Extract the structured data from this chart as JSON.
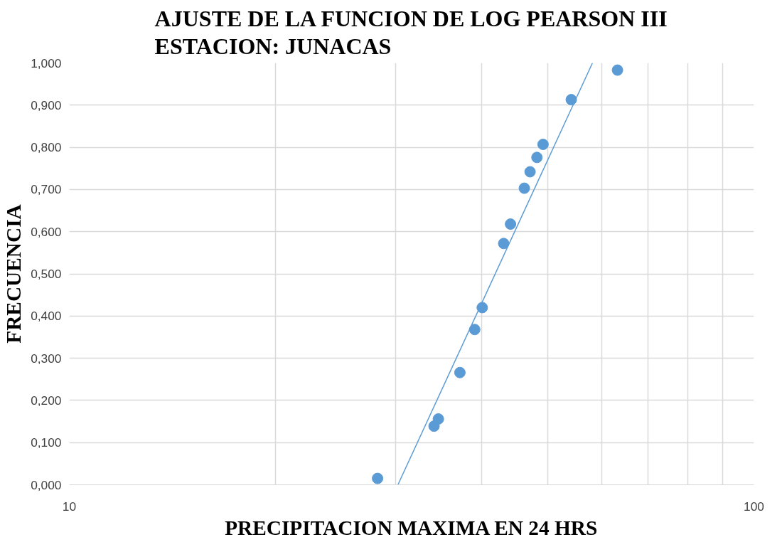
{
  "chart_data": {
    "type": "scatter",
    "title": "AJUSTE DE LA FUNCION DE LOG PEARSON III\nESTACION: JUNACAS",
    "xlabel": "PRECIPITACION MAXIMA EN 24 HRS",
    "ylabel": "FRECUENCIA",
    "log": "x",
    "grid": true,
    "xlim": [
      10,
      100
    ],
    "xticks": [
      10,
      {
        "value": 20,
        "label": null
      },
      {
        "value": 30,
        "label": null
      },
      {
        "value": 40,
        "label": null
      },
      {
        "value": 50,
        "label": null
      },
      {
        "value": 60,
        "label": null
      },
      {
        "value": 70,
        "label": null
      },
      {
        "value": 80,
        "label": null
      },
      {
        "value": 90,
        "label": null
      },
      100
    ],
    "ylim": [
      0,
      1
    ],
    "yticks": [
      {
        "value": 0,
        "label": "0,000"
      },
      {
        "value": 0.1,
        "label": "0,100"
      },
      {
        "value": 0.2,
        "label": "0,200"
      },
      {
        "value": 0.3,
        "label": "0,300"
      },
      {
        "value": 0.4,
        "label": "0,400"
      },
      {
        "value": 0.5,
        "label": "0,500"
      },
      {
        "value": 0.6,
        "label": "0,600"
      },
      {
        "value": 0.7,
        "label": "0,700"
      },
      {
        "value": 0.8,
        "label": "0,800"
      },
      {
        "value": 0.9,
        "label": "0,900"
      },
      {
        "value": 1,
        "label": "1,000"
      }
    ],
    "series": [
      {
        "marker": "circle",
        "color": "#5b9bd5",
        "x": [
          28.2,
          34.1,
          34.6,
          37.2,
          39.1,
          40.1,
          43.1,
          44.1,
          46.2,
          47.1,
          48.2,
          49.2,
          54.1,
          63.2
        ],
        "values": [
          0.015,
          0.139,
          0.156,
          0.266,
          0.368,
          0.42,
          0.572,
          0.618,
          0.703,
          0.742,
          0.776,
          0.807,
          0.913,
          0.983
        ]
      },
      {
        "type": "line",
        "marker": "none",
        "color": "#5b9bd5",
        "x": [
          30.2,
          58.1
        ],
        "values": [
          0,
          1
        ]
      }
    ]
  }
}
